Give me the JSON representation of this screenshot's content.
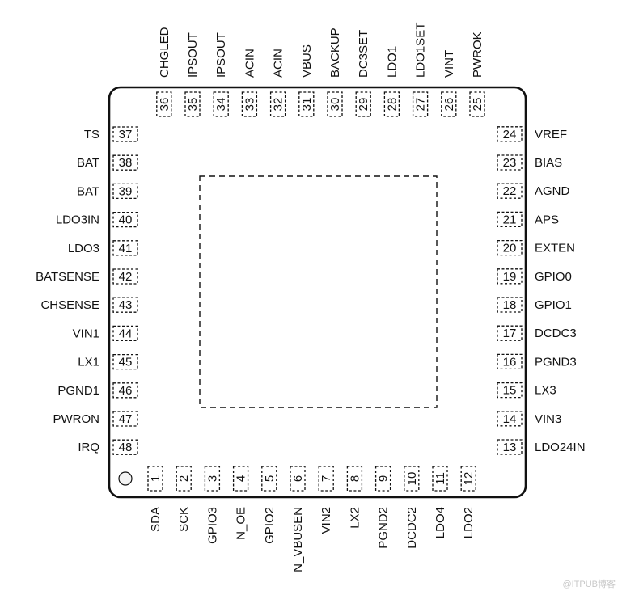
{
  "pins": {
    "bottom": [
      {
        "num": "1",
        "name": "SDA"
      },
      {
        "num": "2",
        "name": "SCK"
      },
      {
        "num": "3",
        "name": "GPIO3"
      },
      {
        "num": "4",
        "name": "N_OE"
      },
      {
        "num": "5",
        "name": "GPIO2"
      },
      {
        "num": "6",
        "name": "N_VBUSEN"
      },
      {
        "num": "7",
        "name": "VIN2"
      },
      {
        "num": "8",
        "name": "LX2"
      },
      {
        "num": "9",
        "name": "PGND2"
      },
      {
        "num": "10",
        "name": "DCDC2"
      },
      {
        "num": "11",
        "name": "LDO4"
      },
      {
        "num": "12",
        "name": "LDO2"
      }
    ],
    "right": [
      {
        "num": "13",
        "name": "LDO24IN"
      },
      {
        "num": "14",
        "name": "VIN3"
      },
      {
        "num": "15",
        "name": "LX3"
      },
      {
        "num": "16",
        "name": "PGND3"
      },
      {
        "num": "17",
        "name": "DCDC3"
      },
      {
        "num": "18",
        "name": "GPIO1"
      },
      {
        "num": "19",
        "name": "GPIO0"
      },
      {
        "num": "20",
        "name": "EXTEN"
      },
      {
        "num": "21",
        "name": "APS"
      },
      {
        "num": "22",
        "name": "AGND"
      },
      {
        "num": "23",
        "name": "BIAS"
      },
      {
        "num": "24",
        "name": "VREF"
      }
    ],
    "top": [
      {
        "num": "25",
        "name": "PWROK"
      },
      {
        "num": "26",
        "name": "VINT"
      },
      {
        "num": "27",
        "name": "LDO1SET"
      },
      {
        "num": "28",
        "name": "LDO1"
      },
      {
        "num": "29",
        "name": "DC3SET"
      },
      {
        "num": "30",
        "name": "BACKUP"
      },
      {
        "num": "31",
        "name": "VBUS"
      },
      {
        "num": "32",
        "name": "ACIN"
      },
      {
        "num": "33",
        "name": "ACIN"
      },
      {
        "num": "34",
        "name": "IPSOUT"
      },
      {
        "num": "35",
        "name": "IPSOUT"
      },
      {
        "num": "36",
        "name": "CHGLED"
      }
    ],
    "left": [
      {
        "num": "37",
        "name": "TS"
      },
      {
        "num": "38",
        "name": "BAT"
      },
      {
        "num": "39",
        "name": "BAT"
      },
      {
        "num": "40",
        "name": "LDO3IN"
      },
      {
        "num": "41",
        "name": "LDO3"
      },
      {
        "num": "42",
        "name": "BATSENSE"
      },
      {
        "num": "43",
        "name": "CHSENSE"
      },
      {
        "num": "44",
        "name": "VIN1"
      },
      {
        "num": "45",
        "name": "LX1"
      },
      {
        "num": "46",
        "name": "PGND1"
      },
      {
        "num": "47",
        "name": "PWRON"
      },
      {
        "num": "48",
        "name": "IRQ"
      }
    ]
  },
  "watermark": "@ITPUB博客"
}
